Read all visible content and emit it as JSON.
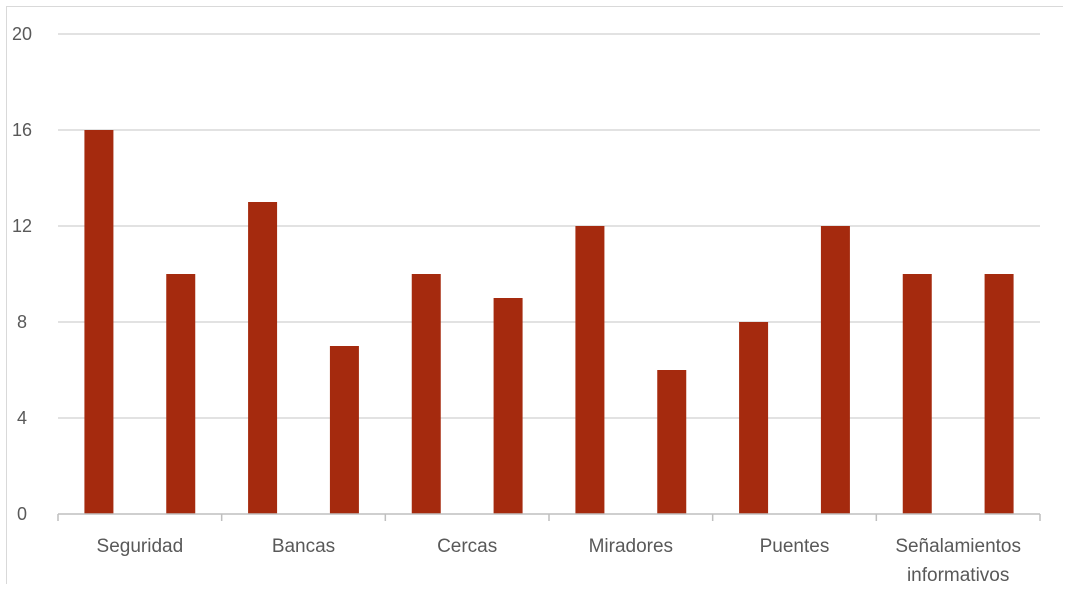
{
  "chart_data": {
    "type": "bar",
    "title": "",
    "xlabel": "",
    "ylabel": "",
    "ylim": [
      0,
      20
    ],
    "yticks": [
      "0",
      "4",
      "8",
      "12",
      "16",
      "20"
    ],
    "grid": true,
    "legend": "none",
    "categories": [
      "Seguridad",
      "",
      "Bancas",
      "",
      "Cercas",
      "",
      "Miradores",
      "",
      "Puentes",
      "",
      "Señalamientos informativos",
      ""
    ],
    "category_label_lines": [
      [
        "Seguridad"
      ],
      [],
      [
        "Bancas"
      ],
      [],
      [
        "Cercas"
      ],
      [],
      [
        "Miradores"
      ],
      [],
      [
        "Puentes"
      ],
      [],
      [
        "Señalamientos",
        "informativos"
      ],
      []
    ],
    "values": [
      16,
      10,
      13,
      7,
      10,
      9,
      12,
      6,
      8,
      12,
      10,
      10
    ],
    "colors": {
      "bar": "#a52a0e",
      "grid": "#d9d9d9",
      "axis": "#bfbfbf",
      "text": "#595959"
    }
  }
}
